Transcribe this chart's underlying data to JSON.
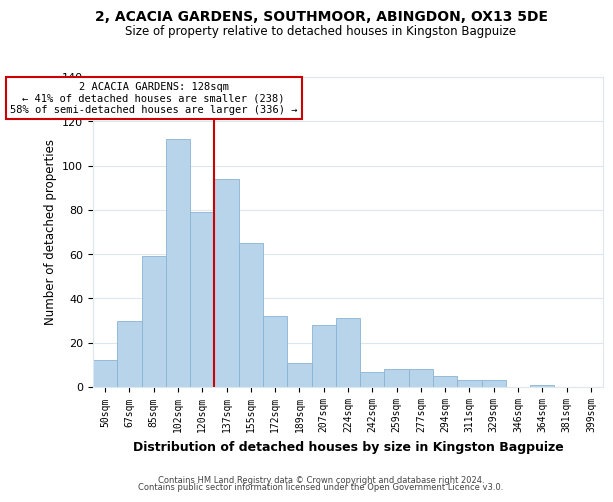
{
  "title": "2, ACACIA GARDENS, SOUTHMOOR, ABINGDON, OX13 5DE",
  "subtitle": "Size of property relative to detached houses in Kingston Bagpuize",
  "xlabel": "Distribution of detached houses by size in Kingston Bagpuize",
  "ylabel": "Number of detached properties",
  "bar_labels": [
    "50sqm",
    "67sqm",
    "85sqm",
    "102sqm",
    "120sqm",
    "137sqm",
    "155sqm",
    "172sqm",
    "189sqm",
    "207sqm",
    "224sqm",
    "242sqm",
    "259sqm",
    "277sqm",
    "294sqm",
    "311sqm",
    "329sqm",
    "346sqm",
    "364sqm",
    "381sqm",
    "399sqm"
  ],
  "bar_values": [
    12,
    30,
    59,
    112,
    79,
    94,
    65,
    32,
    11,
    28,
    31,
    7,
    8,
    8,
    5,
    3,
    3,
    0,
    1,
    0,
    0
  ],
  "bar_color": "#b8d4ea",
  "bar_edge_color": "#8ab4d4",
  "vline_color": "#cc0000",
  "ylim": [
    0,
    140
  ],
  "yticks": [
    0,
    20,
    40,
    60,
    80,
    100,
    120,
    140
  ],
  "annotation_title": "2 ACACIA GARDENS: 128sqm",
  "annotation_line1": "← 41% of detached houses are smaller (238)",
  "annotation_line2": "58% of semi-detached houses are larger (336) →",
  "annotation_box_color": "#ffffff",
  "annotation_box_edge": "#cc0000",
  "footer1": "Contains HM Land Registry data © Crown copyright and database right 2024.",
  "footer2": "Contains public sector information licensed under the Open Government Licence v3.0.",
  "background_color": "#ffffff",
  "grid_color": "#dce8f0"
}
